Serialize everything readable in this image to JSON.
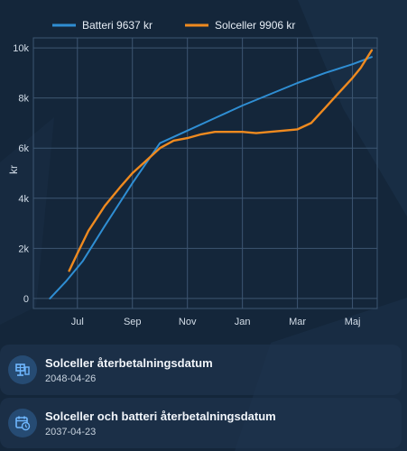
{
  "chart_data": {
    "type": "line",
    "title": "",
    "xlabel": "",
    "ylabel": "kr",
    "ylim": [
      -400,
      10400
    ],
    "y_ticks": [
      0,
      2000,
      4000,
      6000,
      8000,
      10000
    ],
    "y_tick_labels": [
      "0",
      "2k",
      "4k",
      "6k",
      "8k",
      "10k"
    ],
    "x_ticks": [
      "Jul",
      "Sep",
      "Nov",
      "Jan",
      "Mar",
      "Maj"
    ],
    "grid": true,
    "legend_position": "top",
    "series": [
      {
        "name": "Batteri 9637 kr",
        "color": "#2f8ed3",
        "points": [
          [
            0,
            0
          ],
          [
            0.6,
            700
          ],
          [
            1.2,
            1500
          ],
          [
            2.0,
            2900
          ],
          [
            3.0,
            4600
          ],
          [
            4.0,
            6200
          ],
          [
            5.0,
            6700
          ],
          [
            6.0,
            7200
          ],
          [
            7.0,
            7700
          ],
          [
            8.0,
            8150
          ],
          [
            9.0,
            8600
          ],
          [
            10.0,
            9000
          ],
          [
            11.0,
            9350
          ],
          [
            11.7,
            9637
          ]
        ]
      },
      {
        "name": "Solceller 9906 kr",
        "color": "#ef8a1f",
        "points": [
          [
            0.7,
            1100
          ],
          [
            1.0,
            1800
          ],
          [
            1.4,
            2700
          ],
          [
            2.0,
            3700
          ],
          [
            2.6,
            4500
          ],
          [
            3.0,
            5000
          ],
          [
            3.5,
            5500
          ],
          [
            4.0,
            6000
          ],
          [
            4.5,
            6300
          ],
          [
            5.0,
            6400
          ],
          [
            5.5,
            6550
          ],
          [
            6.0,
            6650
          ],
          [
            6.5,
            6650
          ],
          [
            7.0,
            6650
          ],
          [
            7.5,
            6600
          ],
          [
            8.0,
            6650
          ],
          [
            8.5,
            6700
          ],
          [
            9.0,
            6750
          ],
          [
            9.5,
            7000
          ],
          [
            10.0,
            7600
          ],
          [
            10.5,
            8200
          ],
          [
            11.0,
            8800
          ],
          [
            11.3,
            9200
          ],
          [
            11.7,
            9906
          ]
        ]
      }
    ]
  },
  "cards": [
    {
      "title": "Solceller återbetalningsdatum",
      "value": "2048-04-26",
      "icon": "solar-panel-icon"
    },
    {
      "title": "Solceller och batteri återbetalningsdatum",
      "value": "2037-04-23",
      "icon": "calendar-clock-icon"
    }
  ]
}
